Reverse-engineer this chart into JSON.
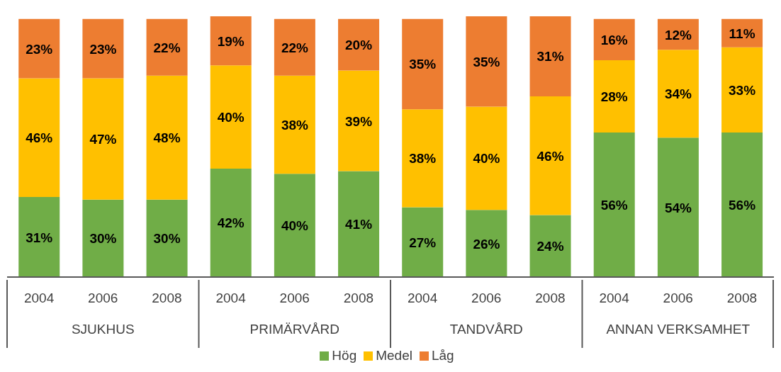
{
  "chart_data": {
    "type": "bar",
    "stacked": true,
    "categories": [
      "2004",
      "2006",
      "2008",
      "2004",
      "2006",
      "2008",
      "2004",
      "2006",
      "2008",
      "2004",
      "2006",
      "2008"
    ],
    "series": [
      {
        "name": "Hög",
        "color": "#70ad47",
        "values": [
          31,
          30,
          30,
          42,
          40,
          41,
          27,
          26,
          24,
          56,
          54,
          56
        ],
        "value_labels": [
          "31%",
          "30%",
          "30%",
          "42%",
          "40%",
          "41%",
          "27%",
          "26%",
          "24%",
          "56%",
          "54%",
          "56%"
        ]
      },
      {
        "name": "Medel",
        "color": "#ffc000",
        "values": [
          46,
          47,
          48,
          40,
          38,
          39,
          38,
          40,
          46,
          28,
          34,
          33
        ],
        "value_labels": [
          "46%",
          "47%",
          "48%",
          "40%",
          "38%",
          "39%",
          "38%",
          "40%",
          "46%",
          "28%",
          "34%",
          "33%"
        ]
      },
      {
        "name": "Låg",
        "color": "#ed7d31",
        "values": [
          23,
          23,
          22,
          19,
          22,
          20,
          35,
          35,
          31,
          16,
          12,
          11
        ],
        "value_labels": [
          "23%",
          "23%",
          "22%",
          "19%",
          "22%",
          "20%",
          "35%",
          "35%",
          "31%",
          "16%",
          "12%",
          "11%"
        ]
      }
    ],
    "annotations": [
      "SJUKHUS",
      "PRIMÄRVÅRD",
      "TANDVÅRD",
      "ANNAN VERKSAMHET"
    ],
    "tick_labels": "x",
    "legend": "bottom"
  }
}
